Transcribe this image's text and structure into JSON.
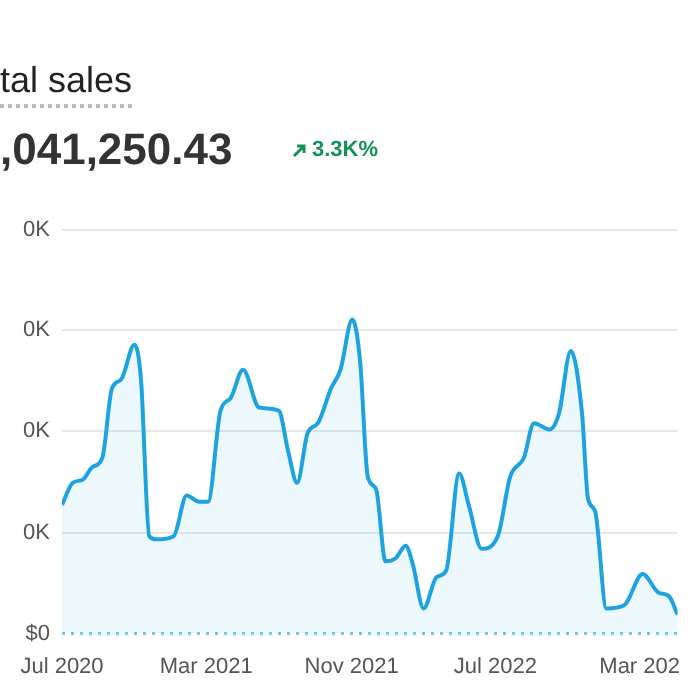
{
  "chart_data": {
    "type": "area",
    "title": "tal sales",
    "subtitle": ",041,250.43",
    "annotations": [
      "3.3K%"
    ],
    "grid": "y",
    "legend": false,
    "marker": "none",
    "line_style": "solid",
    "x": [
      "2020-07-01",
      "2020-07-19",
      "2020-08-05",
      "2020-08-21",
      "2020-09-07",
      "2020-09-23",
      "2020-10-09",
      "2020-10-31",
      "2020-11-11",
      "2020-11-25",
      "2020-12-08",
      "2021-01-05",
      "2021-01-27",
      "2021-02-17",
      "2021-03-04",
      "2021-03-25",
      "2021-04-11",
      "2021-05-02",
      "2021-05-29",
      "2021-07-01",
      "2021-07-17",
      "2021-08-01",
      "2021-08-19",
      "2021-09-05",
      "2021-09-27",
      "2021-10-13",
      "2021-11-02",
      "2021-11-15",
      "2021-11-28",
      "2021-12-12",
      "2021-12-28",
      "2022-01-14",
      "2022-01-31",
      "2022-02-12",
      "2022-03-02",
      "2022-03-24",
      "2022-04-09",
      "2022-05-01",
      "2022-05-17",
      "2022-06-08",
      "2022-07-05",
      "2022-07-26",
      "2022-08-18",
      "2022-09-04",
      "2022-09-30",
      "2022-10-16",
      "2022-11-05",
      "2022-11-24",
      "2022-12-04",
      "2022-12-16",
      "2023-01-04",
      "2023-02-03",
      "2023-03-06",
      "2023-04-02",
      "2023-04-19",
      "2023-05-04"
    ],
    "xlim": [
      "2020-07-01",
      "2023-05-04"
    ],
    "xticks": [
      {
        "value": "2020-07-01",
        "label": "Jul 2020"
      },
      {
        "value": "2021-03-01",
        "label": "Mar 2021"
      },
      {
        "value": "2021-11-01",
        "label": "Nov 2021"
      },
      {
        "value": "2022-07-01",
        "label": "Jul 2022"
      },
      {
        "value": "2023-03-01",
        "label": "Mar 202"
      }
    ],
    "ylim": [
      0,
      1.285
    ],
    "yticks": [
      {
        "value": 0,
        "label": "$0"
      },
      {
        "value": 0.32,
        "label": "0K"
      },
      {
        "value": 0.646,
        "label": "0K"
      },
      {
        "value": 0.966,
        "label": "0K"
      },
      {
        "value": 1.285,
        "label": "0K"
      }
    ],
    "ref_lines": [
      {
        "axis": "y",
        "value": 0,
        "color": "#74cde6",
        "line_style": "dotted"
      }
    ],
    "series": [
      {
        "color": "#1fa3e0",
        "values": [
          0.41,
          0.48,
          0.49,
          0.53,
          0.56,
          0.78,
          0.81,
          0.92,
          0.81,
          0.31,
          0.3,
          0.31,
          0.44,
          0.42,
          0.42,
          0.71,
          0.75,
          0.84,
          0.72,
          0.71,
          0.58,
          0.48,
          0.64,
          0.67,
          0.78,
          0.84,
          1.0,
          0.87,
          0.5,
          0.46,
          0.23,
          0.24,
          0.28,
          0.22,
          0.08,
          0.18,
          0.2,
          0.51,
          0.41,
          0.27,
          0.31,
          0.5,
          0.56,
          0.67,
          0.65,
          0.7,
          0.9,
          0.7,
          0.43,
          0.39,
          0.08,
          0.09,
          0.19,
          0.13,
          0.12,
          0.06
        ]
      }
    ]
  }
}
